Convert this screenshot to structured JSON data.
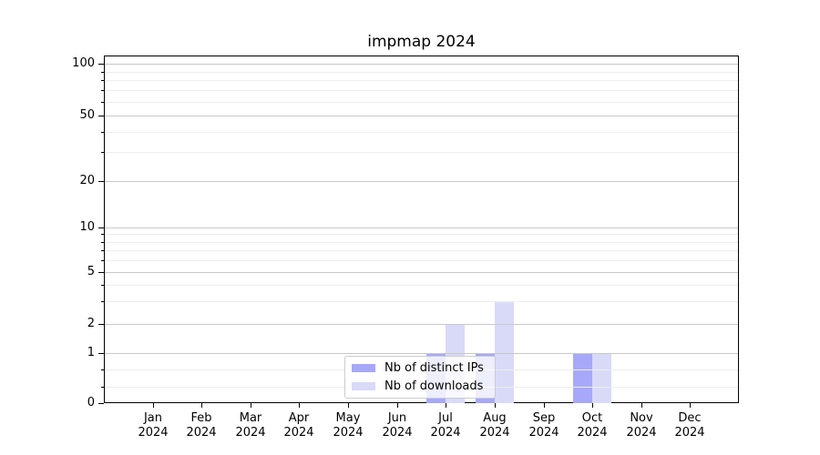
{
  "chart_data": {
    "type": "bar",
    "title": "impmap 2024",
    "months": [
      "Jan",
      "Feb",
      "Mar",
      "Apr",
      "May",
      "Jun",
      "Jul",
      "Aug",
      "Sep",
      "Oct",
      "Nov",
      "Dec"
    ],
    "year_label": "2024",
    "categories": [
      "Jan 2024",
      "Feb 2024",
      "Mar 2024",
      "Apr 2024",
      "May 2024",
      "Jun 2024",
      "Jul 2024",
      "Aug 2024",
      "Sep 2024",
      "Oct 2024",
      "Nov 2024",
      "Dec 2024"
    ],
    "series": [
      {
        "name": "Nb of distinct IPs",
        "color": "#a7a8f8",
        "values": [
          0,
          0,
          0,
          0,
          0,
          0,
          1,
          1,
          0,
          1,
          0,
          0
        ]
      },
      {
        "name": "Nb of downloads",
        "color": "#d9daf8",
        "values": [
          0,
          0,
          0,
          0,
          0,
          0,
          2,
          3,
          0,
          1,
          0,
          0
        ]
      }
    ],
    "y_ticks": [
      0,
      1,
      2,
      5,
      10,
      20,
      50,
      100
    ],
    "y_tick_labels": [
      "0",
      "1",
      "2",
      "5",
      "10",
      "20",
      "50",
      "100"
    ],
    "y_scale": "log-like with zero baseline",
    "ylim": [
      0,
      110
    ],
    "xlabel": "",
    "ylabel": "",
    "grid": "horizontal",
    "legend_position": "bottom-center",
    "legend_entries": [
      "Nb of distinct IPs",
      "Nb of downloads"
    ],
    "colors": {
      "axis": "#000000",
      "major_grid": "#c8c8c8",
      "minor_grid": "#ededed",
      "background": "#ffffff"
    }
  }
}
